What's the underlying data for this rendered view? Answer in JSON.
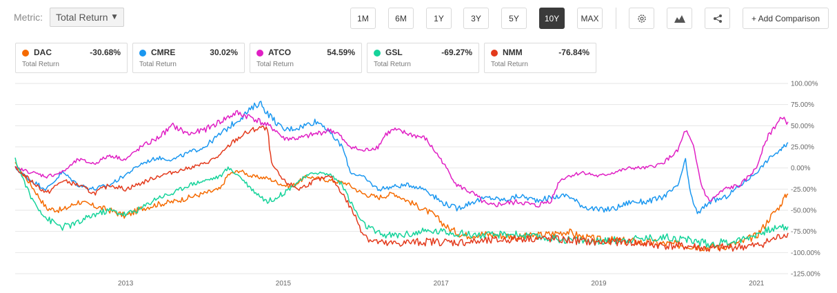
{
  "toolbar": {
    "metric_label": "Metric:",
    "metric_value": "Total Return",
    "metric_caret": "▼",
    "ranges": [
      "1M",
      "6M",
      "1Y",
      "3Y",
      "5Y",
      "10Y",
      "MAX"
    ],
    "active_range": "10Y",
    "compare_label": "+ Add Comparison",
    "tools": [
      "settings-icon",
      "chart-type-icon",
      "share-icon"
    ]
  },
  "legend": [
    {
      "symbol": "DAC",
      "value": "-30.68%",
      "sub": "Total Return",
      "color": "#f56a00"
    },
    {
      "symbol": "CMRE",
      "value": "30.02%",
      "sub": "Total Return",
      "color": "#1a97f0"
    },
    {
      "symbol": "ATCO",
      "value": "54.59%",
      "sub": "Total Return",
      "color": "#e01fc4"
    },
    {
      "symbol": "GSL",
      "value": "-69.27%",
      "sub": "Total Return",
      "color": "#15d39a"
    },
    {
      "symbol": "NMM",
      "value": "-76.84%",
      "sub": "Total Return",
      "color": "#e33a1c"
    }
  ],
  "chart_data": {
    "type": "line",
    "ylim": [
      -125,
      100
    ],
    "y_ticks": [
      "100.00%",
      "75.00%",
      "50.00%",
      "25.00%",
      "0.00%",
      "-25.00%",
      "-50.00%",
      "-75.00%",
      "-100.00%",
      "-125.00%"
    ],
    "y_tick_values": [
      100,
      75,
      50,
      25,
      0,
      -25,
      -50,
      -75,
      -100,
      -125
    ],
    "x_range": [
      2011.6,
      2021.4
    ],
    "x_ticks": [
      "2013",
      "2015",
      "2017",
      "2019",
      "2021"
    ],
    "x_tick_values": [
      2013,
      2015,
      2017,
      2019,
      2021
    ],
    "grid": true,
    "legend": "top",
    "series": [
      {
        "name": "DAC",
        "color": "#f56a00",
        "points": [
          [
            2011.6,
            5
          ],
          [
            2011.8,
            -20
          ],
          [
            2012.0,
            -48
          ],
          [
            2012.2,
            -50
          ],
          [
            2012.4,
            -40
          ],
          [
            2012.6,
            -45
          ],
          [
            2012.8,
            -50
          ],
          [
            2013.0,
            -57
          ],
          [
            2013.2,
            -48
          ],
          [
            2013.4,
            -43
          ],
          [
            2013.6,
            -40
          ],
          [
            2013.8,
            -35
          ],
          [
            2014.0,
            -30
          ],
          [
            2014.2,
            -25
          ],
          [
            2014.3,
            -8
          ],
          [
            2014.45,
            -3
          ],
          [
            2014.6,
            -10
          ],
          [
            2014.8,
            -12
          ],
          [
            2015.0,
            -20
          ],
          [
            2015.1,
            -22
          ],
          [
            2015.3,
            -10
          ],
          [
            2015.6,
            -15
          ],
          [
            2015.8,
            -18
          ],
          [
            2016.0,
            -30
          ],
          [
            2016.2,
            -35
          ],
          [
            2016.4,
            -30
          ],
          [
            2016.6,
            -40
          ],
          [
            2016.9,
            -55
          ],
          [
            2017.1,
            -72
          ],
          [
            2017.3,
            -80
          ],
          [
            2017.5,
            -78
          ],
          [
            2017.8,
            -80
          ],
          [
            2018.0,
            -82
          ],
          [
            2018.2,
            -80
          ],
          [
            2018.4,
            -78
          ],
          [
            2018.6,
            -75
          ],
          [
            2018.8,
            -82
          ],
          [
            2019.0,
            -85
          ],
          [
            2019.3,
            -86
          ],
          [
            2019.6,
            -88
          ],
          [
            2019.9,
            -90
          ],
          [
            2020.2,
            -92
          ],
          [
            2020.4,
            -94
          ],
          [
            2020.6,
            -92
          ],
          [
            2020.8,
            -88
          ],
          [
            2021.0,
            -80
          ],
          [
            2021.1,
            -68
          ],
          [
            2021.2,
            -55
          ],
          [
            2021.3,
            -45
          ],
          [
            2021.35,
            -35
          ],
          [
            2021.4,
            -30.68
          ]
        ]
      },
      {
        "name": "CMRE",
        "color": "#1a97f0",
        "points": [
          [
            2011.6,
            0
          ],
          [
            2011.8,
            -15
          ],
          [
            2012.0,
            -25
          ],
          [
            2012.2,
            -5
          ],
          [
            2012.4,
            -20
          ],
          [
            2012.6,
            -25
          ],
          [
            2012.8,
            -20
          ],
          [
            2013.0,
            -8
          ],
          [
            2013.2,
            5
          ],
          [
            2013.4,
            12
          ],
          [
            2013.6,
            10
          ],
          [
            2013.8,
            18
          ],
          [
            2014.0,
            25
          ],
          [
            2014.2,
            40
          ],
          [
            2014.4,
            55
          ],
          [
            2014.6,
            70
          ],
          [
            2014.7,
            78
          ],
          [
            2014.8,
            65
          ],
          [
            2014.9,
            55
          ],
          [
            2015.0,
            45
          ],
          [
            2015.2,
            48
          ],
          [
            2015.4,
            55
          ],
          [
            2015.5,
            52
          ],
          [
            2015.6,
            40
          ],
          [
            2015.75,
            25
          ],
          [
            2015.85,
            -5
          ],
          [
            2016.0,
            -10
          ],
          [
            2016.2,
            -25
          ],
          [
            2016.4,
            -22
          ],
          [
            2016.6,
            -20
          ],
          [
            2016.8,
            -25
          ],
          [
            2017.0,
            -40
          ],
          [
            2017.2,
            -48
          ],
          [
            2017.4,
            -40
          ],
          [
            2017.6,
            -35
          ],
          [
            2017.8,
            -38
          ],
          [
            2018.0,
            -33
          ],
          [
            2018.2,
            -38
          ],
          [
            2018.4,
            -35
          ],
          [
            2018.6,
            -32
          ],
          [
            2018.8,
            -45
          ],
          [
            2019.0,
            -50
          ],
          [
            2019.2,
            -48
          ],
          [
            2019.4,
            -40
          ],
          [
            2019.6,
            -40
          ],
          [
            2019.8,
            -35
          ],
          [
            2020.0,
            -22
          ],
          [
            2020.1,
            10
          ],
          [
            2020.15,
            -25
          ],
          [
            2020.25,
            -55
          ],
          [
            2020.4,
            -40
          ],
          [
            2020.6,
            -35
          ],
          [
            2020.8,
            -20
          ],
          [
            2021.0,
            -5
          ],
          [
            2021.1,
            5
          ],
          [
            2021.2,
            15
          ],
          [
            2021.3,
            20
          ],
          [
            2021.35,
            25
          ],
          [
            2021.4,
            30.02
          ]
        ]
      },
      {
        "name": "ATCO",
        "color": "#e01fc4",
        "points": [
          [
            2011.6,
            0
          ],
          [
            2011.8,
            -5
          ],
          [
            2012.0,
            -10
          ],
          [
            2012.2,
            -5
          ],
          [
            2012.4,
            10
          ],
          [
            2012.6,
            5
          ],
          [
            2012.8,
            15
          ],
          [
            2013.0,
            10
          ],
          [
            2013.2,
            25
          ],
          [
            2013.4,
            35
          ],
          [
            2013.6,
            50
          ],
          [
            2013.8,
            40
          ],
          [
            2014.0,
            45
          ],
          [
            2014.2,
            55
          ],
          [
            2014.4,
            65
          ],
          [
            2014.6,
            60
          ],
          [
            2014.7,
            55
          ],
          [
            2014.8,
            50
          ],
          [
            2014.9,
            45
          ],
          [
            2015.0,
            35
          ],
          [
            2015.2,
            35
          ],
          [
            2015.4,
            40
          ],
          [
            2015.6,
            45
          ],
          [
            2015.7,
            40
          ],
          [
            2015.8,
            28
          ],
          [
            2016.0,
            20
          ],
          [
            2016.2,
            25
          ],
          [
            2016.3,
            40
          ],
          [
            2016.4,
            45
          ],
          [
            2016.6,
            40
          ],
          [
            2016.8,
            35
          ],
          [
            2017.0,
            10
          ],
          [
            2017.2,
            -20
          ],
          [
            2017.4,
            -30
          ],
          [
            2017.6,
            -45
          ],
          [
            2017.8,
            -42
          ],
          [
            2018.0,
            -40
          ],
          [
            2018.2,
            -45
          ],
          [
            2018.4,
            -38
          ],
          [
            2018.5,
            -15
          ],
          [
            2018.6,
            -10
          ],
          [
            2018.8,
            -5
          ],
          [
            2019.0,
            -10
          ],
          [
            2019.2,
            -5
          ],
          [
            2019.4,
            0
          ],
          [
            2019.6,
            0
          ],
          [
            2019.8,
            5
          ],
          [
            2020.0,
            20
          ],
          [
            2020.1,
            45
          ],
          [
            2020.2,
            25
          ],
          [
            2020.3,
            -20
          ],
          [
            2020.4,
            -40
          ],
          [
            2020.6,
            -25
          ],
          [
            2020.8,
            -20
          ],
          [
            2021.0,
            0
          ],
          [
            2021.1,
            30
          ],
          [
            2021.2,
            45
          ],
          [
            2021.3,
            58
          ],
          [
            2021.4,
            54.59
          ]
        ]
      },
      {
        "name": "GSL",
        "color": "#15d39a",
        "points": [
          [
            2011.6,
            10
          ],
          [
            2011.8,
            -35
          ],
          [
            2012.0,
            -60
          ],
          [
            2012.2,
            -70
          ],
          [
            2012.4,
            -65
          ],
          [
            2012.6,
            -55
          ],
          [
            2012.8,
            -50
          ],
          [
            2013.0,
            -55
          ],
          [
            2013.2,
            -48
          ],
          [
            2013.4,
            -35
          ],
          [
            2013.6,
            -30
          ],
          [
            2013.8,
            -20
          ],
          [
            2014.0,
            -15
          ],
          [
            2014.2,
            -10
          ],
          [
            2014.3,
            0
          ],
          [
            2014.45,
            -10
          ],
          [
            2014.6,
            -25
          ],
          [
            2014.8,
            -40
          ],
          [
            2015.0,
            -30
          ],
          [
            2015.2,
            -15
          ],
          [
            2015.4,
            -5
          ],
          [
            2015.6,
            -8
          ],
          [
            2015.75,
            -20
          ],
          [
            2015.85,
            -40
          ],
          [
            2016.0,
            -65
          ],
          [
            2016.2,
            -78
          ],
          [
            2016.4,
            -80
          ],
          [
            2016.6,
            -78
          ],
          [
            2016.8,
            -75
          ],
          [
            2017.0,
            -75
          ],
          [
            2017.3,
            -78
          ],
          [
            2017.6,
            -80
          ],
          [
            2017.9,
            -78
          ],
          [
            2018.2,
            -82
          ],
          [
            2018.5,
            -84
          ],
          [
            2018.8,
            -86
          ],
          [
            2019.0,
            -87
          ],
          [
            2019.3,
            -85
          ],
          [
            2019.6,
            -83
          ],
          [
            2019.9,
            -82
          ],
          [
            2020.2,
            -86
          ],
          [
            2020.4,
            -90
          ],
          [
            2020.6,
            -88
          ],
          [
            2020.8,
            -85
          ],
          [
            2021.0,
            -78
          ],
          [
            2021.2,
            -72
          ],
          [
            2021.4,
            -69.27
          ]
        ]
      },
      {
        "name": "NMM",
        "color": "#e33a1c",
        "points": [
          [
            2011.6,
            0
          ],
          [
            2011.8,
            -15
          ],
          [
            2012.0,
            -30
          ],
          [
            2012.2,
            -15
          ],
          [
            2012.4,
            -20
          ],
          [
            2012.6,
            -30
          ],
          [
            2012.8,
            -20
          ],
          [
            2013.0,
            -25
          ],
          [
            2013.2,
            -18
          ],
          [
            2013.4,
            -10
          ],
          [
            2013.6,
            -5
          ],
          [
            2013.8,
            0
          ],
          [
            2014.0,
            5
          ],
          [
            2014.2,
            15
          ],
          [
            2014.35,
            30
          ],
          [
            2014.5,
            40
          ],
          [
            2014.7,
            48
          ],
          [
            2014.8,
            45
          ],
          [
            2014.85,
            5
          ],
          [
            2015.0,
            -15
          ],
          [
            2015.2,
            -25
          ],
          [
            2015.4,
            -15
          ],
          [
            2015.6,
            -10
          ],
          [
            2015.75,
            -30
          ],
          [
            2015.9,
            -55
          ],
          [
            2016.0,
            -75
          ],
          [
            2016.1,
            -85
          ],
          [
            2016.3,
            -90
          ],
          [
            2016.6,
            -88
          ],
          [
            2016.9,
            -87
          ],
          [
            2017.2,
            -88
          ],
          [
            2017.5,
            -87
          ],
          [
            2017.8,
            -85
          ],
          [
            2018.1,
            -83
          ],
          [
            2018.4,
            -84
          ],
          [
            2018.7,
            -86
          ],
          [
            2019.0,
            -88
          ],
          [
            2019.3,
            -87
          ],
          [
            2019.6,
            -90
          ],
          [
            2019.9,
            -92
          ],
          [
            2020.2,
            -93
          ],
          [
            2020.4,
            -96
          ],
          [
            2020.6,
            -94
          ],
          [
            2020.8,
            -93
          ],
          [
            2021.0,
            -92
          ],
          [
            2021.2,
            -85
          ],
          [
            2021.4,
            -76.84
          ]
        ]
      }
    ]
  }
}
